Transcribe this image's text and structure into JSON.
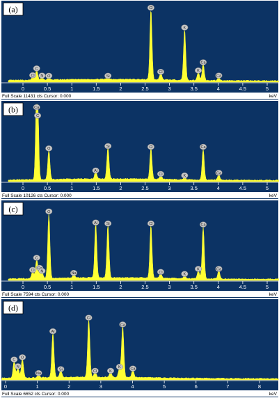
{
  "colors": {
    "background": "#0c3364",
    "spectrum": "#ffff33",
    "grid": "#ffffff"
  },
  "chart_data": [
    {
      "type": "area",
      "panel": "(a)",
      "xlabel": "keV",
      "xlim": [
        -0.3,
        5.5
      ],
      "ylim": [
        0,
        11431
      ],
      "xticks": [
        0,
        0.5,
        1,
        1.5,
        2,
        2.5,
        3,
        3.5,
        4,
        4.5,
        5
      ],
      "tick_labels": [
        "0",
        "0.5",
        "1",
        "1.5",
        "2",
        "2.5",
        "3",
        "3.5",
        "4",
        "4.5",
        "5"
      ],
      "status": "Full Scale 11431 cts Cursor: 0.000",
      "series": [
        {
          "peaks": [
            {
              "label": "C",
              "x": 0.28,
              "y": 1500
            },
            {
              "label": "Cl",
              "x": 0.2,
              "y": 500
            },
            {
              "label": "N",
              "x": 0.39,
              "y": 450
            },
            {
              "label": "O",
              "x": 0.53,
              "y": 420
            },
            {
              "label": "Si",
              "x": 1.74,
              "y": 420
            },
            {
              "label": "Cl",
              "x": 2.62,
              "y": 10400
            },
            {
              "label": "Cl",
              "x": 2.82,
              "y": 1000
            },
            {
              "label": "K",
              "x": 3.31,
              "y": 7500
            },
            {
              "label": "K",
              "x": 3.59,
              "y": 1200
            },
            {
              "label": "Ca",
              "x": 3.69,
              "y": 2400
            },
            {
              "label": "Ca",
              "x": 4.01,
              "y": 450
            }
          ]
        }
      ]
    },
    {
      "type": "area",
      "panel": "(b)",
      "xlabel": "keV",
      "xlim": [
        -0.3,
        5.5
      ],
      "ylim": [
        0,
        10126
      ],
      "xticks": [
        0,
        0.5,
        1,
        1.5,
        2,
        2.5,
        3,
        3.5,
        4,
        4.5,
        5
      ],
      "tick_labels": [
        "0",
        "0.5",
        "1",
        "1.5",
        "2",
        "2.5",
        "3",
        "3.5",
        "4",
        "4.5",
        "5"
      ],
      "status": "Full Scale 10126 cts Cursor: 0.000",
      "series": [
        {
          "peaks": [
            {
              "label": "Ca",
              "x": 0.28,
              "y": 9300
            },
            {
              "label": "C",
              "x": 0.3,
              "y": 8200
            },
            {
              "label": "O",
              "x": 0.53,
              "y": 3900
            },
            {
              "label": "Al",
              "x": 1.49,
              "y": 1000
            },
            {
              "label": "Si",
              "x": 1.74,
              "y": 4200
            },
            {
              "label": "Cl",
              "x": 2.62,
              "y": 4100
            },
            {
              "label": "Cl",
              "x": 2.82,
              "y": 550
            },
            {
              "label": "K",
              "x": 3.31,
              "y": 350
            },
            {
              "label": "Ca",
              "x": 3.69,
              "y": 4100
            },
            {
              "label": "Ca",
              "x": 4.01,
              "y": 700
            }
          ]
        }
      ]
    },
    {
      "type": "area",
      "panel": "(c)",
      "xlabel": "keV",
      "xlim": [
        -0.3,
        5.5
      ],
      "ylim": [
        0,
        7594
      ],
      "xticks": [
        0,
        0.5,
        1,
        1.5,
        2,
        2.5,
        3,
        3.5,
        4,
        4.5,
        5
      ],
      "tick_labels": [
        "0",
        "0.5",
        "1",
        "1.5",
        "2",
        "2.5",
        "3",
        "3.5",
        "4",
        "4.5",
        "5"
      ],
      "status": "Full Scale 7594 cts Cursor: 0.000",
      "series": [
        {
          "peaks": [
            {
              "label": "C",
              "x": 0.28,
              "y": 1900
            },
            {
              "label": "Ca",
              "x": 0.34,
              "y": 900
            },
            {
              "label": "Cl",
              "x": 0.2,
              "y": 700
            },
            {
              "label": "N",
              "x": 0.39,
              "y": 600
            },
            {
              "label": "O",
              "x": 0.53,
              "y": 6500
            },
            {
              "label": "Na",
              "x": 1.04,
              "y": 400
            },
            {
              "label": "Al",
              "x": 1.49,
              "y": 5400
            },
            {
              "label": "Si",
              "x": 1.74,
              "y": 5300
            },
            {
              "label": "Cl",
              "x": 2.62,
              "y": 5300
            },
            {
              "label": "Cl",
              "x": 2.82,
              "y": 500
            },
            {
              "label": "K",
              "x": 3.31,
              "y": 300
            },
            {
              "label": "K",
              "x": 3.59,
              "y": 800
            },
            {
              "label": "Ca",
              "x": 3.69,
              "y": 5200
            },
            {
              "label": "Ca",
              "x": 4.01,
              "y": 800
            }
          ]
        }
      ]
    },
    {
      "type": "area",
      "panel": "(d)",
      "xlabel": "keV",
      "xlim": [
        -0.12,
        8.6
      ],
      "ylim": [
        0,
        6652
      ],
      "xticks": [
        0,
        1,
        2,
        3,
        4,
        5,
        6,
        7,
        8
      ],
      "tick_labels": [
        "0",
        "1",
        "2",
        "3",
        "4",
        "5",
        "6",
        "7",
        "8"
      ],
      "status": "Full Scale 6652 cts Cursor: 0.000",
      "series": [
        {
          "peaks": [
            {
              "label": "C",
              "x": 0.27,
              "y": 1500
            },
            {
              "label": "N",
              "x": 0.39,
              "y": 900
            },
            {
              "label": "O",
              "x": 0.53,
              "y": 1700
            },
            {
              "label": "Na",
              "x": 1.04,
              "y": 300
            },
            {
              "label": "Al",
              "x": 1.49,
              "y": 4000
            },
            {
              "label": "Si",
              "x": 1.74,
              "y": 650
            },
            {
              "label": "Cl",
              "x": 2.62,
              "y": 5200
            },
            {
              "label": "Cl",
              "x": 2.82,
              "y": 500
            },
            {
              "label": "K",
              "x": 3.31,
              "y": 500
            },
            {
              "label": "K",
              "x": 3.59,
              "y": 850
            },
            {
              "label": "Ca",
              "x": 3.69,
              "y": 4600
            },
            {
              "label": "Ca",
              "x": 4.01,
              "y": 700
            }
          ]
        }
      ]
    }
  ]
}
